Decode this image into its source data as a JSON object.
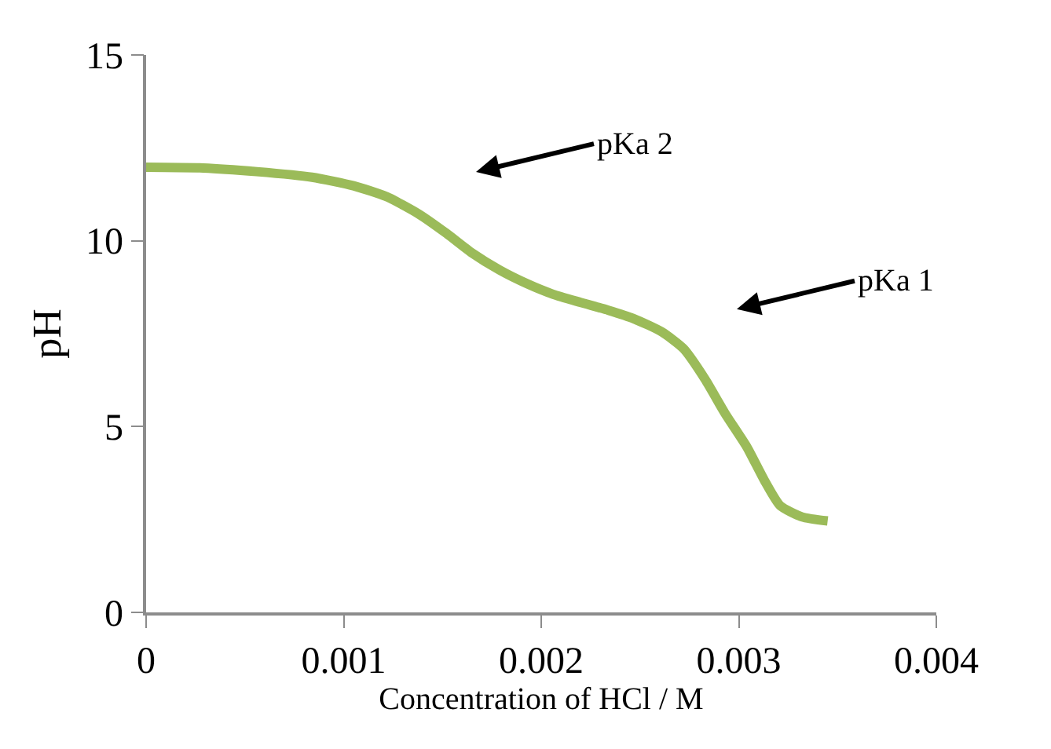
{
  "chart_data": {
    "type": "line",
    "xlabel": "Concentration of HCl / M",
    "ylabel": "pH",
    "x": [
      0,
      0.00029,
      0.00056,
      0.00084,
      0.00105,
      0.00122,
      0.00138,
      0.00152,
      0.00165,
      0.00179,
      0.00193,
      0.00206,
      0.0022,
      0.00234,
      0.00247,
      0.00261,
      0.00272,
      0.00283,
      0.00293,
      0.00304,
      0.00313,
      0.00321,
      0.00332,
      0.00345
    ],
    "series": [
      {
        "color": "#9bbb59",
        "values": [
          11.98,
          11.96,
          11.86,
          11.71,
          11.48,
          11.18,
          10.72,
          10.2,
          9.67,
          9.21,
          8.84,
          8.56,
          8.34,
          8.13,
          7.9,
          7.55,
          7.1,
          6.27,
          5.36,
          4.46,
          3.55,
          2.87,
          2.57,
          2.46
        ]
      }
    ],
    "xlim": [
      0,
      0.004
    ],
    "xticks": [
      0,
      0.001,
      0.002,
      0.003,
      0.004
    ],
    "ylim": [
      0,
      15
    ],
    "yticks": [
      0,
      5,
      10,
      15
    ],
    "annotations": [
      "pKa 2",
      "pKa 1"
    ]
  }
}
